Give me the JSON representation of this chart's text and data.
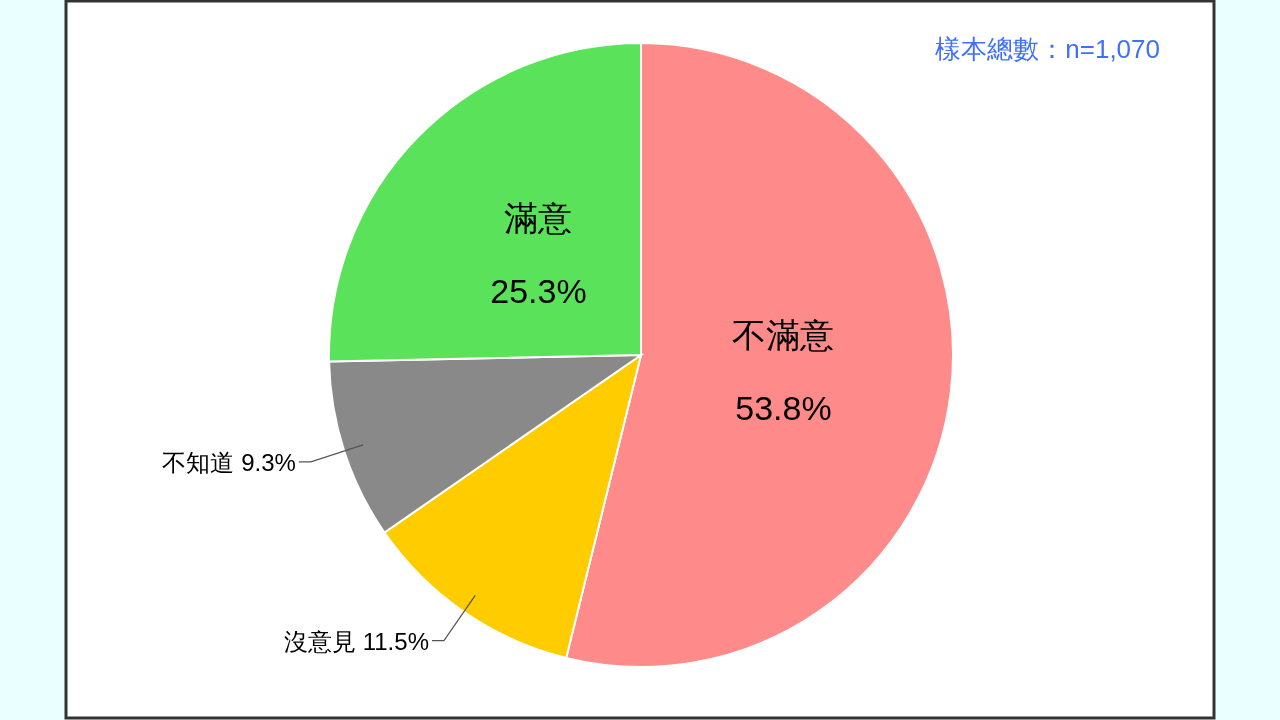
{
  "chart_data": {
    "type": "pie",
    "categories": [
      "不滿意",
      "沒意見",
      "不知道",
      "滿意"
    ],
    "values": [
      53.8,
      11.5,
      9.3,
      25.3
    ],
    "value_labels": [
      "53.8%",
      "11.5%",
      "9.3%",
      "25.3%"
    ],
    "colors": [
      "#ff8a8a",
      "#ffcc00",
      "#898989",
      "#5ae35a"
    ],
    "annotations": [
      "樣本總數：n=1,070"
    ]
  }
}
